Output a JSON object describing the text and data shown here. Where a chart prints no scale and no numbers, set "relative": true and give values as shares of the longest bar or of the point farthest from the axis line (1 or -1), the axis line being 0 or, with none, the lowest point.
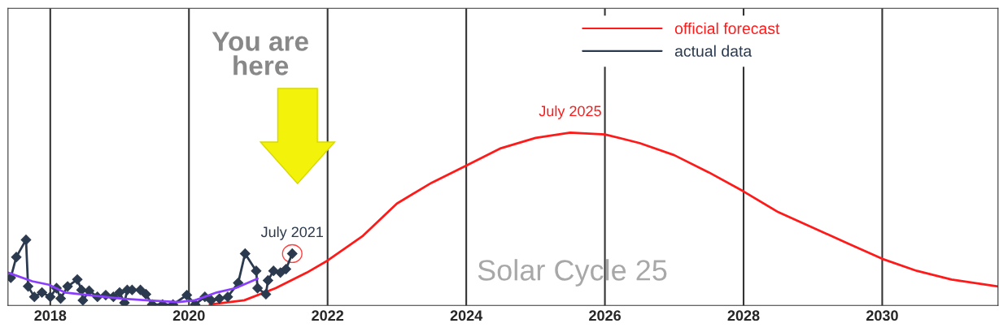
{
  "chart_data": {
    "type": "line",
    "relative": true,
    "xlim": [
      2017.39,
      2031.67
    ],
    "xticks": [
      2018,
      2020,
      2022,
      2024,
      2026,
      2028,
      2030
    ],
    "grid": "x",
    "legend": "top",
    "series": [
      {
        "name": "official forecast",
        "color": "#ff1a1a",
        "marker": "none",
        "x": [
          2020.3,
          2020.8,
          2021.25,
          2021.7,
          2022,
          2022.5,
          2023,
          2023.5,
          2024,
          2024.5,
          2025,
          2025.5,
          2026,
          2026.5,
          2027,
          2027.5,
          2028,
          2028.5,
          2029,
          2029.5,
          2030,
          2030.5,
          2031,
          2031.67
        ],
        "values": [
          0.005,
          0.03,
          0.1,
          0.19,
          0.26,
          0.4,
          0.59,
          0.71,
          0.81,
          0.91,
          0.97,
          1.0,
          0.99,
          0.94,
          0.87,
          0.77,
          0.66,
          0.54,
          0.45,
          0.36,
          0.27,
          0.2,
          0.15,
          0.11
        ]
      },
      {
        "name": "actual data",
        "color": "#2b3a4e",
        "marker": "diamond",
        "x": [
          2017.43,
          2017.51,
          2017.65,
          2017.68,
          2017.77,
          2017.88,
          2018.0,
          2018.09,
          2018.15,
          2018.25,
          2018.39,
          2018.45,
          2018.47,
          2018.56,
          2018.68,
          2018.8,
          2018.91,
          2019.0,
          2019.07,
          2019.11,
          2019.18,
          2019.3,
          2019.38,
          2019.47,
          2019.62,
          2019.77,
          2019.97,
          2020.09,
          2020.23,
          2020.32,
          2020.44,
          2020.56,
          2020.71,
          2020.81,
          2020.97,
          2020.99,
          2021.11,
          2021.14,
          2021.22,
          2021.32,
          2021.4,
          2021.49
        ],
        "values": [
          0.16,
          0.28,
          0.38,
          0.11,
          0.05,
          0.075,
          0.05,
          0.1,
          0.04,
          0.11,
          0.15,
          0.09,
          0.03,
          0.085,
          0.05,
          0.06,
          0.05,
          0.075,
          0.015,
          0.09,
          0.09,
          0.09,
          0.065,
          0.005,
          0.005,
          0.005,
          0.06,
          0.005,
          0.05,
          0.03,
          0.04,
          0.05,
          0.13,
          0.3,
          0.2,
          0.1,
          0.065,
          0.145,
          0.2,
          0.19,
          0.21,
          0.3
        ]
      },
      {
        "color": "#8a3ffc",
        "marker": "none",
        "x": [
          2017.39,
          2017.74,
          2017.98,
          2018.21,
          2018.56,
          2019.03,
          2019.38,
          2019.85,
          2020.09,
          2020.4,
          2020.67,
          2020.99
        ],
        "values": [
          0.19,
          0.14,
          0.12,
          0.075,
          0.06,
          0.04,
          0.03,
          0.02,
          0.03,
          0.075,
          0.1,
          0.155
        ]
      }
    ],
    "annotations": [
      "You are here",
      {
        "text": "July 2021",
        "x": 2021.49,
        "y": 0.3
      },
      {
        "text": "July 2025",
        "x": 2025.5,
        "y": 1.0
      },
      "Solar Cycle 25"
    ]
  }
}
